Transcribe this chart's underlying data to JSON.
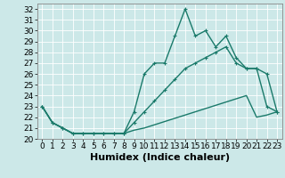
{
  "xlabel": "Humidex (Indice chaleur)",
  "background_color": "#cce8e8",
  "grid_color": "#ffffff",
  "line_color": "#1a7a6a",
  "xlim": [
    -0.5,
    23.5
  ],
  "ylim": [
    20,
    32.5
  ],
  "xticks": [
    0,
    1,
    2,
    3,
    4,
    5,
    6,
    7,
    8,
    9,
    10,
    11,
    12,
    13,
    14,
    15,
    16,
    17,
    18,
    19,
    20,
    21,
    22,
    23
  ],
  "yticks": [
    20,
    21,
    22,
    23,
    24,
    25,
    26,
    27,
    28,
    29,
    30,
    31,
    32
  ],
  "line1_x": [
    0,
    1,
    2,
    3,
    4,
    5,
    6,
    7,
    8,
    9,
    10,
    11,
    12,
    13,
    14,
    15,
    16,
    17,
    18,
    19,
    20,
    21,
    22,
    23
  ],
  "line1_y": [
    23.0,
    21.5,
    21.0,
    20.5,
    20.5,
    20.5,
    20.5,
    20.5,
    20.5,
    22.5,
    26.0,
    27.0,
    27.0,
    29.5,
    32.0,
    29.5,
    30.0,
    28.5,
    29.5,
    27.5,
    26.5,
    26.5,
    23.0,
    22.5
  ],
  "line2_x": [
    0,
    1,
    2,
    3,
    4,
    5,
    6,
    7,
    8,
    9,
    10,
    11,
    12,
    13,
    14,
    15,
    16,
    17,
    18,
    19,
    20,
    21,
    22,
    23
  ],
  "line2_y": [
    23.0,
    21.5,
    21.0,
    20.5,
    20.5,
    20.5,
    20.5,
    20.5,
    20.5,
    21.5,
    22.5,
    23.5,
    24.5,
    25.5,
    26.5,
    27.0,
    27.5,
    28.0,
    28.5,
    27.0,
    26.5,
    26.5,
    26.0,
    22.5
  ],
  "line3_x": [
    0,
    1,
    2,
    3,
    4,
    5,
    6,
    7,
    8,
    9,
    10,
    11,
    12,
    13,
    14,
    15,
    16,
    17,
    18,
    19,
    20,
    21,
    22,
    23
  ],
  "line3_y": [
    23.0,
    21.5,
    21.0,
    20.5,
    20.5,
    20.5,
    20.5,
    20.5,
    20.5,
    20.8,
    21.0,
    21.3,
    21.6,
    21.9,
    22.2,
    22.5,
    22.8,
    23.1,
    23.4,
    23.7,
    24.0,
    22.0,
    22.2,
    22.5
  ],
  "linewidth": 1.0,
  "xlabel_fontsize": 8,
  "tick_fontsize": 6.5,
  "marker_size": 3.0
}
